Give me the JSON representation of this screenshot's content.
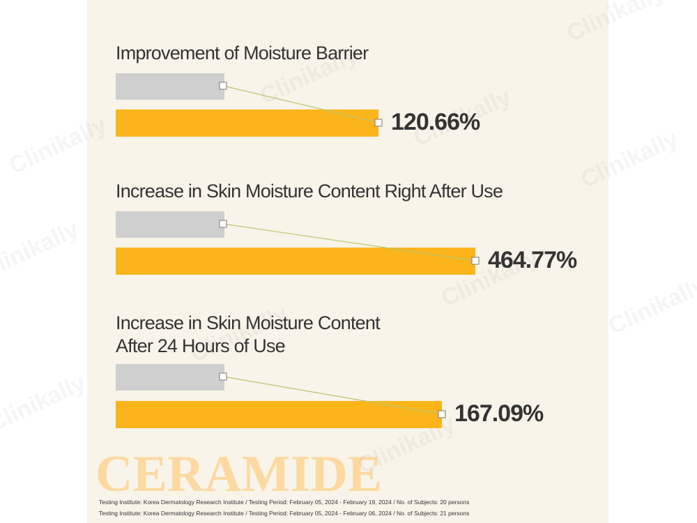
{
  "watermark": "Clinikally",
  "sections": [
    {
      "title_lines": [
        "Improvement of Moisture Barrier"
      ],
      "value": "120.66%"
    },
    {
      "title_lines": [
        "Increase in Skin Moisture Content Right After Use"
      ],
      "value": "464.77%"
    },
    {
      "title_lines": [
        "Increase in Skin Moisture Content",
        "After 24 Hours of Use"
      ],
      "value": "167.09%"
    }
  ],
  "brand": "CERAMIDE",
  "footnotes": [
    "Testing Institute: Korea Dermatology Research Institute / Testing Period: February 05, 2024 - February 19, 2024 / No. of Subjects: 20 persons",
    "Testing Institute: Korea Dermatology Research Institute / Testing Period: February 05, 2024 - February 06, 2024 / No. of Subjects: 21 persons"
  ]
}
